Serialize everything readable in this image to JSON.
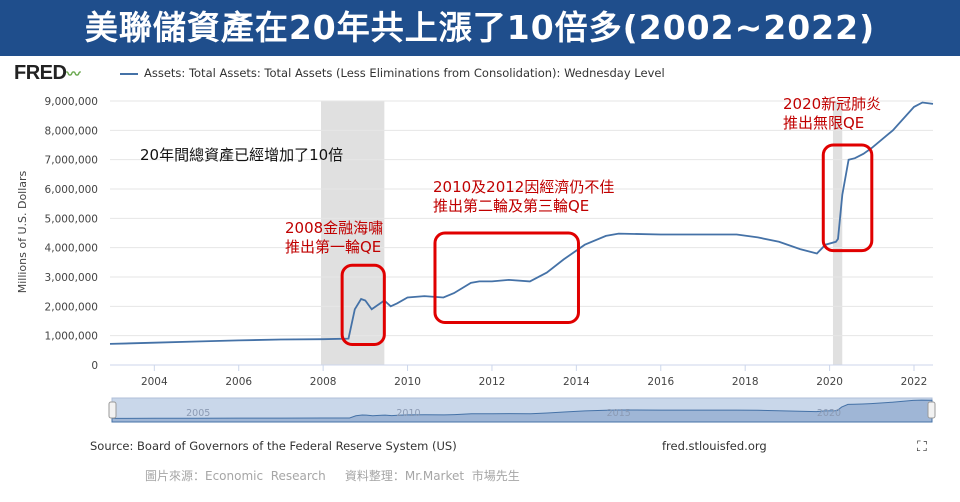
{
  "banner": {
    "title": "美聯儲資產在20年共上漲了10倍多(2002~2022)"
  },
  "fred": {
    "logo": "FRED",
    "legend": "Assets: Total Assets: Total Assets (Less Eliminations from Consolidation): Wednesday Level"
  },
  "footer": {
    "source": "Source: Board of Governors of the Federal Reserve System (US)",
    "url": "fred.stlouisfed.org",
    "credit": "圖片來源：Economic  Research     資料整理：Mr.Market  市場先生"
  },
  "annotations": {
    "total": "20年間總資產已經增加了10倍",
    "qe1_line1": "2008金融海嘯",
    "qe1_line2": "推出第一輪QE",
    "qe23_line1": "2010及2012因經濟仍不佳",
    "qe23_line2": "推出第二輪及第三輪QE",
    "qe_inf_line1": "2020新冠肺炎",
    "qe_inf_line2": "推出無限QE"
  },
  "colors": {
    "banner": "#1f4e8c",
    "line": "#4572a7",
    "highlight": "#e00000",
    "recession": "#e0e0e0"
  },
  "chart_data": {
    "type": "line",
    "title": "",
    "xlabel": "",
    "ylabel": "Millions of U.S. Dollars",
    "xlim": [
      2002.95,
      2022.45
    ],
    "ylim": [
      0,
      9000000
    ],
    "yticks": [
      0,
      1000000,
      2000000,
      3000000,
      4000000,
      5000000,
      6000000,
      7000000,
      8000000,
      9000000
    ],
    "ytick_labels": [
      "0",
      "1,000,000",
      "2,000,000",
      "3,000,000",
      "4,000,000",
      "5,000,000",
      "6,000,000",
      "7,000,000",
      "8,000,000",
      "9,000,000"
    ],
    "xticks": [
      2004,
      2006,
      2008,
      2010,
      2012,
      2014,
      2016,
      2018,
      2020,
      2022
    ],
    "xtick_labels": [
      "2004",
      "2006",
      "2008",
      "2010",
      "2012",
      "2014",
      "2016",
      "2018",
      "2020",
      "2022"
    ],
    "grid": true,
    "legend_position": "top",
    "recessions": [
      [
        2007.95,
        2009.45
      ],
      [
        2020.08,
        2020.3
      ]
    ],
    "navigator_labels": [
      "2005",
      "2010",
      "2015",
      "2020"
    ],
    "series": [
      {
        "name": "Assets: Total Assets: Total Assets (Less Eliminations from Consolidation): Wednesday Level",
        "x": [
          2002.95,
          2004,
          2005,
          2006,
          2007,
          2008,
          2008.6,
          2008.75,
          2008.9,
          2009.0,
          2009.15,
          2009.3,
          2009.45,
          2009.6,
          2009.75,
          2010,
          2010.4,
          2010.85,
          2011.1,
          2011.5,
          2011.7,
          2012,
          2012.4,
          2012.9,
          2013.3,
          2013.7,
          2014.2,
          2014.7,
          2015,
          2016,
          2017,
          2017.8,
          2018.3,
          2018.8,
          2019.3,
          2019.7,
          2019.9,
          2020.15,
          2020.2,
          2020.3,
          2020.45,
          2020.6,
          2020.8,
          2021,
          2021.5,
          2022,
          2022.2,
          2022.45
        ],
        "y": [
          720000,
          760000,
          800000,
          840000,
          870000,
          880000,
          900000,
          1900000,
          2250000,
          2200000,
          1900000,
          2050000,
          2200000,
          2000000,
          2100000,
          2300000,
          2350000,
          2300000,
          2450000,
          2800000,
          2850000,
          2850000,
          2900000,
          2850000,
          3150000,
          3600000,
          4100000,
          4400000,
          4480000,
          4450000,
          4450000,
          4450000,
          4350000,
          4200000,
          3950000,
          3800000,
          4100000,
          4200000,
          4300000,
          5800000,
          7000000,
          7050000,
          7200000,
          7400000,
          8000000,
          8800000,
          8950000,
          8900000
        ]
      }
    ]
  }
}
